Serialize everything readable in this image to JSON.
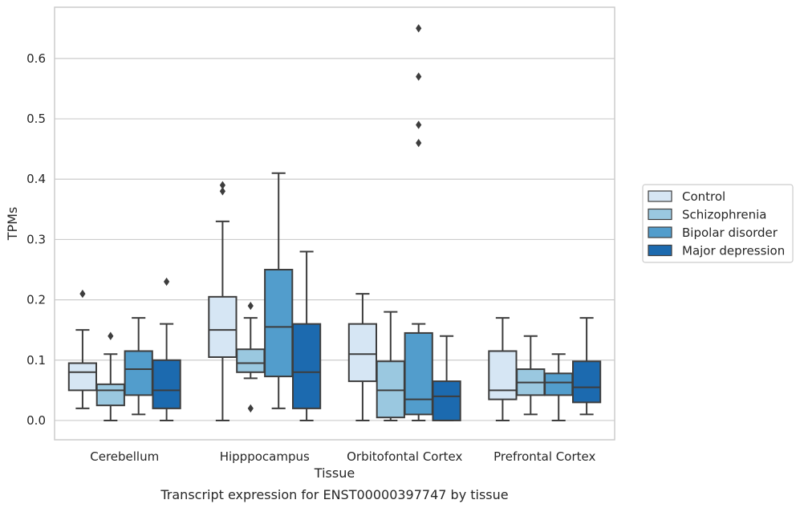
{
  "chart_data": {
    "type": "boxplot",
    "title": "",
    "caption": "Transcript expression for ENST00000397747 by tissue",
    "xlabel": "Tissue",
    "ylabel": "TPMs",
    "ylim": [
      -0.032,
      0.685
    ],
    "yticks": [
      "0.0",
      "0.1",
      "0.2",
      "0.3",
      "0.4",
      "0.5",
      "0.6"
    ],
    "grid": "horizontal",
    "legend_position": "outside-right",
    "categories": [
      "Cerebellum",
      "Hipppocampus",
      "Orbitofontal Cortex",
      "Prefrontal Cortex"
    ],
    "series": [
      {
        "name": "Control",
        "color": "#d6e6f4",
        "boxes": [
          {
            "whislo": 0.02,
            "q1": 0.05,
            "med": 0.08,
            "q3": 0.095,
            "whishi": 0.15,
            "fliers": [
              0.21
            ]
          },
          {
            "whislo": 0.0,
            "q1": 0.105,
            "med": 0.15,
            "q3": 0.205,
            "whishi": 0.33,
            "fliers": [
              0.38,
              0.39
            ]
          },
          {
            "whislo": 0.0,
            "q1": 0.065,
            "med": 0.11,
            "q3": 0.16,
            "whishi": 0.21,
            "fliers": []
          },
          {
            "whislo": 0.0,
            "q1": 0.035,
            "med": 0.05,
            "q3": 0.115,
            "whishi": 0.17,
            "fliers": []
          }
        ]
      },
      {
        "name": "Schizophrenia",
        "color": "#9ac8e0",
        "boxes": [
          {
            "whislo": 0.0,
            "q1": 0.025,
            "med": 0.05,
            "q3": 0.06,
            "whishi": 0.11,
            "fliers": [
              0.14
            ]
          },
          {
            "whislo": 0.07,
            "q1": 0.08,
            "med": 0.095,
            "q3": 0.118,
            "whishi": 0.17,
            "fliers": [
              0.19,
              0.02
            ]
          },
          {
            "whislo": 0.0,
            "q1": 0.005,
            "med": 0.05,
            "q3": 0.098,
            "whishi": 0.18,
            "fliers": []
          },
          {
            "whislo": 0.01,
            "q1": 0.042,
            "med": 0.063,
            "q3": 0.085,
            "whishi": 0.14,
            "fliers": []
          }
        ]
      },
      {
        "name": "Bipolar disorder",
        "color": "#529dcc",
        "boxes": [
          {
            "whislo": 0.01,
            "q1": 0.042,
            "med": 0.085,
            "q3": 0.115,
            "whishi": 0.17,
            "fliers": []
          },
          {
            "whislo": 0.02,
            "q1": 0.073,
            "med": 0.155,
            "q3": 0.25,
            "whishi": 0.41,
            "fliers": []
          },
          {
            "whislo": 0.0,
            "q1": 0.01,
            "med": 0.035,
            "q3": 0.145,
            "whishi": 0.16,
            "fliers": [
              0.46,
              0.49,
              0.57,
              0.65
            ]
          },
          {
            "whislo": 0.0,
            "q1": 0.042,
            "med": 0.063,
            "q3": 0.078,
            "whishi": 0.11,
            "fliers": []
          }
        ]
      },
      {
        "name": "Major depression",
        "color": "#1c6aaf",
        "boxes": [
          {
            "whislo": 0.0,
            "q1": 0.02,
            "med": 0.05,
            "q3": 0.1,
            "whishi": 0.16,
            "fliers": [
              0.23
            ]
          },
          {
            "whislo": 0.0,
            "q1": 0.02,
            "med": 0.08,
            "q3": 0.16,
            "whishi": 0.28,
            "fliers": []
          },
          {
            "whislo": 0.0,
            "q1": 0.0,
            "med": 0.04,
            "q3": 0.065,
            "whishi": 0.14,
            "fliers": []
          },
          {
            "whislo": 0.01,
            "q1": 0.03,
            "med": 0.055,
            "q3": 0.098,
            "whishi": 0.17,
            "fliers": []
          }
        ]
      }
    ]
  }
}
